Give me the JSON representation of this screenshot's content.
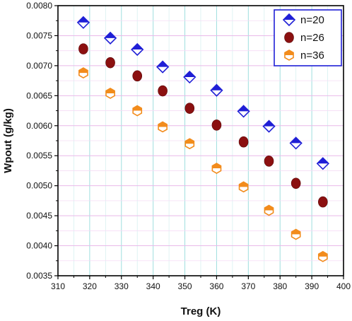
{
  "chart_data": {
    "type": "scatter",
    "xlabel": "Treg (K)",
    "ylabel": "Wpout (g/kg)",
    "xlim": [
      310,
      400
    ],
    "ylim": [
      0.0035,
      0.008
    ],
    "x_ticks": [
      310,
      320,
      330,
      340,
      350,
      360,
      370,
      380,
      390,
      400
    ],
    "y_ticks": [
      "0.0035",
      "0.0040",
      "0.0045",
      "0.0050",
      "0.0055",
      "0.0060",
      "0.0065",
      "0.0070",
      "0.0075",
      "0.0080"
    ],
    "grid": true,
    "legend_position": "top-right",
    "x": [
      318,
      326.5,
      335,
      343,
      351.5,
      360,
      368.5,
      376.5,
      385,
      393.5
    ],
    "series": [
      {
        "name": "n=20",
        "marker": "diamond",
        "color": "#1f1fd6",
        "values": [
          0.00772,
          0.00746,
          0.00727,
          0.00698,
          0.00681,
          0.00659,
          0.00624,
          0.00599,
          0.00571,
          0.00537
        ]
      },
      {
        "name": "n=26",
        "marker": "circle",
        "color": "#8b1010",
        "values": [
          0.00728,
          0.00705,
          0.00683,
          0.00658,
          0.00629,
          0.00601,
          0.00573,
          0.00541,
          0.00504,
          0.00473
        ]
      },
      {
        "name": "n=36",
        "marker": "hexagon",
        "color": "#f28c1c",
        "values": [
          0.00688,
          0.00654,
          0.00625,
          0.00598,
          0.0057,
          0.00529,
          0.00498,
          0.00459,
          0.00419,
          0.00382
        ]
      }
    ]
  }
}
